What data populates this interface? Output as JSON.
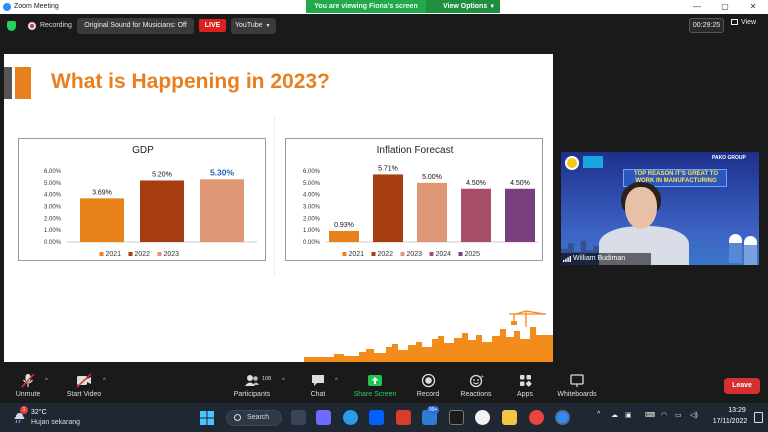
{
  "window": {
    "title": "Zoom Meeting"
  },
  "share_banner": {
    "viewing_text": "You are viewing Fiona's screen",
    "view_options_label": "View Options"
  },
  "meeting_bar": {
    "recording_label": "Recording",
    "original_sound_label": "Original Sound for Musicians: Off",
    "live_label": "LIVE",
    "stream_target": "YouTube",
    "timer": "00:29:25",
    "view_label": "View"
  },
  "slide": {
    "title": "What is Happening in 2023?"
  },
  "chart_data": [
    {
      "type": "bar",
      "title": "GDP",
      "categories": [
        "2021",
        "2022",
        "2023"
      ],
      "values": [
        3.69,
        5.2,
        5.3
      ],
      "data_labels": [
        "3.69%",
        "5.20%",
        "5.30%"
      ],
      "colors": [
        "#e8831c",
        "#a53d10",
        "#df9674"
      ],
      "highlight_label_color": "#1f5fbf",
      "ylim": [
        0,
        6
      ],
      "yticks": [
        "0.00%",
        "1.00%",
        "2.00%",
        "3.00%",
        "4.00%",
        "5.00%",
        "6.00%"
      ],
      "legend": "bottom",
      "grid": false
    },
    {
      "type": "bar",
      "title": "Inflation Forecast",
      "categories": [
        "2021",
        "2022",
        "2023",
        "2024",
        "2025"
      ],
      "values": [
        0.93,
        5.71,
        5.0,
        4.5,
        4.5
      ],
      "data_labels": [
        "0.93%",
        "5.71%",
        "5.00%",
        "4.50%",
        "4.50%"
      ],
      "colors": [
        "#e8831c",
        "#a53d10",
        "#df9674",
        "#a84d68",
        "#7a3f7f"
      ],
      "ylim": [
        0,
        6
      ],
      "yticks": [
        "0.00%",
        "1.00%",
        "2.00%",
        "3.00%",
        "4.00%",
        "5.00%",
        "6.00%"
      ],
      "legend": "bottom",
      "grid": false
    }
  ],
  "speaker": {
    "name": "William Budiman",
    "banner_text": "TOP REASON IT'S GREAT TO WORK IN MANUFACTURING",
    "brand": "PAKO GROUP"
  },
  "controls": {
    "unmute_label": "Unmute",
    "start_video_label": "Start Video",
    "participants_label": "Participants",
    "participants_count": "108",
    "chat_label": "Chat",
    "share_screen_label": "Share Screen",
    "record_label": "Record",
    "reactions_label": "Reactions",
    "apps_label": "Apps",
    "whiteboards_label": "Whiteboards",
    "leave_label": "Leave"
  },
  "taskbar": {
    "temperature": "32°C",
    "weather_desc": "Hujan sekarang",
    "notification_count": "1",
    "search_label": "Search",
    "mail_badge": "99+",
    "time": "13:29",
    "date": "17/11/2022"
  },
  "colors": {
    "accent_orange": "#e8801e",
    "zoom_green": "#23a84b",
    "leave_red": "#d62f2f",
    "taskbar_bg": "#1f2733"
  }
}
